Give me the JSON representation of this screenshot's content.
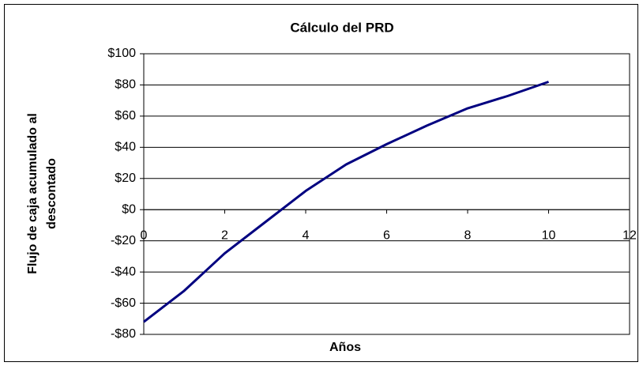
{
  "chart_data": {
    "type": "line",
    "title": "Cálculo del PRD",
    "xlabel": "Años",
    "ylabel": [
      "Flujo de caja acumulado al",
      "descontado"
    ],
    "x": [
      0,
      1,
      2,
      3,
      4,
      5,
      6,
      7,
      8,
      9,
      10
    ],
    "series": [
      {
        "name": "Flujo de caja acumulado al descontado",
        "color": "#000080",
        "values": [
          -72,
          -52,
          -28,
          -8,
          12,
          29,
          42,
          54,
          65,
          73,
          82
        ]
      }
    ],
    "xlim": [
      0,
      12
    ],
    "xticks": [
      0,
      2,
      4,
      6,
      8,
      10,
      12
    ],
    "ylim": [
      -80,
      100
    ],
    "yticks": [
      {
        "value": -80,
        "label": "-$80"
      },
      {
        "value": -60,
        "label": "-$60"
      },
      {
        "value": -40,
        "label": "-$40"
      },
      {
        "value": -20,
        "label": "-$20"
      },
      {
        "value": 0,
        "label": "$0"
      },
      {
        "value": 20,
        "label": "$20"
      },
      {
        "value": 40,
        "label": "$40"
      },
      {
        "value": 60,
        "label": "$60"
      },
      {
        "value": 80,
        "label": "$80"
      },
      {
        "value": 100,
        "label": "$100"
      }
    ],
    "grid": true
  }
}
